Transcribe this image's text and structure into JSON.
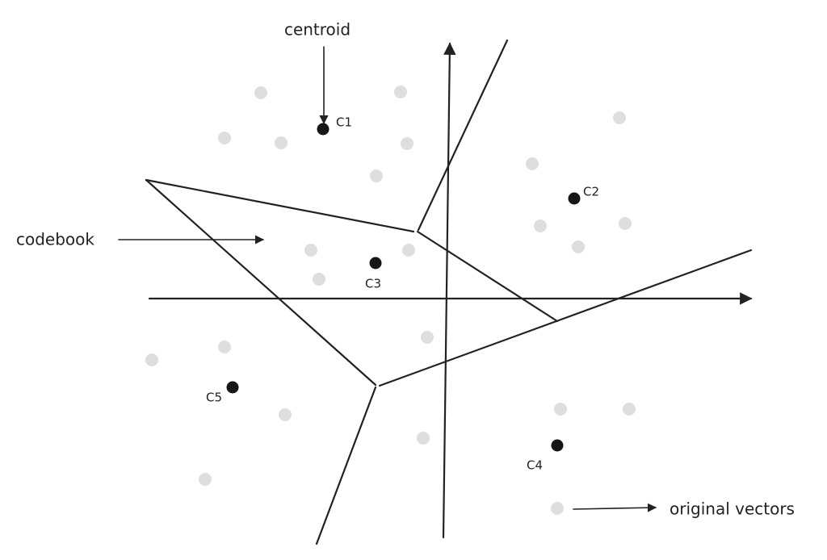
{
  "annotations": {
    "centroid": "centroid",
    "codebook": "codebook",
    "original_vectors": "original vectors"
  },
  "centroids": [
    {
      "label": "C1"
    },
    {
      "label": "C2"
    },
    {
      "label": "C3"
    },
    {
      "label": "C4"
    },
    {
      "label": "C5"
    }
  ]
}
